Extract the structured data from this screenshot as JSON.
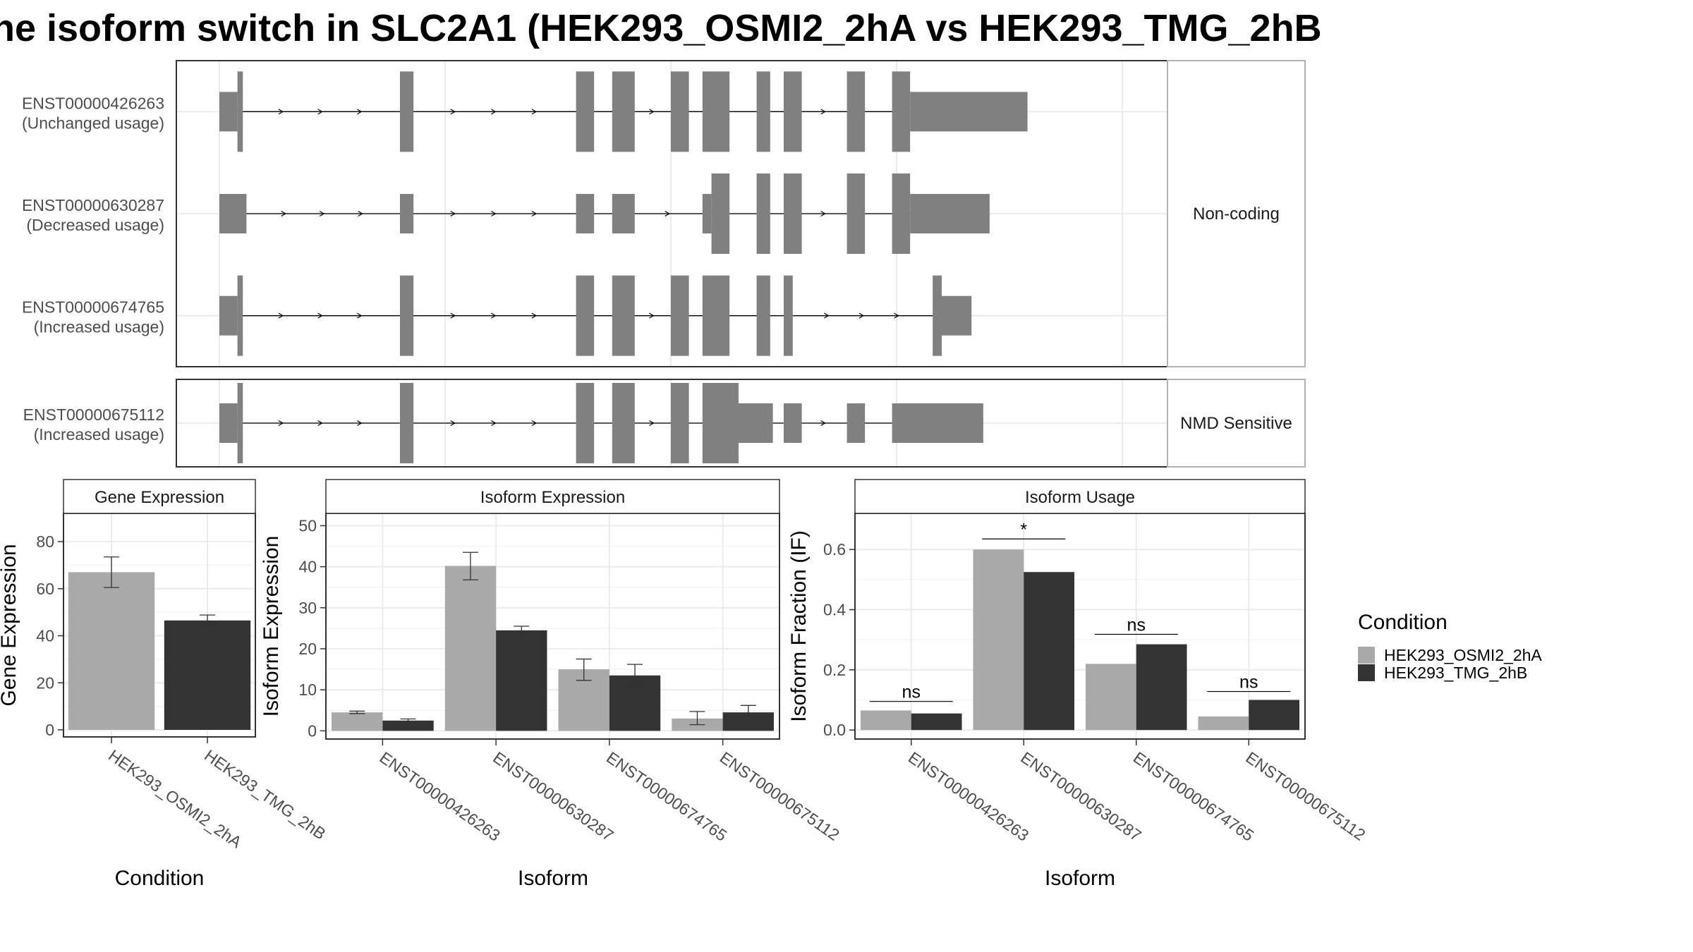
{
  "title": "he isoform switch in SLC2A1 (HEK293_OSMI2_2hA vs HEK293_TMG_2hB",
  "colors": {
    "cond_a": "#a9a9a9",
    "cond_b": "#333333",
    "exon": "#808080",
    "strip_bg": "#ffffff",
    "grid": "#ebebeb"
  },
  "structure": {
    "groups": [
      {
        "label": "Non-coding",
        "isoforms": [
          {
            "id": "ENST00000426263",
            "usage": "(Unchanged usage)",
            "exons": [
              [
                0,
                2,
                "n"
              ],
              [
                2,
                2.6,
                "t"
              ],
              [
                20,
                21.5,
                "t"
              ],
              [
                39.5,
                41.5,
                "t"
              ],
              [
                43.5,
                46,
                "t"
              ],
              [
                50,
                52,
                "t"
              ],
              [
                53.5,
                56.5,
                "t"
              ],
              [
                59.5,
                61,
                "t"
              ],
              [
                62.5,
                64.5,
                "t"
              ],
              [
                69.5,
                71.5,
                "t"
              ],
              [
                74.5,
                76.5,
                "t"
              ],
              [
                76.5,
                89.5,
                "n"
              ]
            ]
          },
          {
            "id": "ENST00000630287",
            "usage": "(Decreased usage)",
            "exons": [
              [
                0,
                3,
                "n"
              ],
              [
                20,
                21.5,
                "n"
              ],
              [
                39.5,
                41.5,
                "n"
              ],
              [
                43.5,
                46,
                "n"
              ],
              [
                53.5,
                54.5,
                "n"
              ],
              [
                54.5,
                56.5,
                "t"
              ],
              [
                59.5,
                61,
                "t"
              ],
              [
                62.5,
                64.5,
                "t"
              ],
              [
                69.5,
                71.5,
                "t"
              ],
              [
                74.5,
                76.5,
                "t"
              ],
              [
                76.5,
                85.3,
                "n"
              ]
            ]
          },
          {
            "id": "ENST00000674765",
            "usage": "(Increased usage)",
            "exons": [
              [
                0,
                2,
                "n"
              ],
              [
                2,
                2.6,
                "t"
              ],
              [
                20,
                21.5,
                "t"
              ],
              [
                39.5,
                41.5,
                "t"
              ],
              [
                43.5,
                46,
                "t"
              ],
              [
                50,
                52,
                "t"
              ],
              [
                53.5,
                56.5,
                "t"
              ],
              [
                59.5,
                61,
                "t"
              ],
              [
                62.5,
                63.5,
                "t"
              ],
              [
                79,
                80,
                "t"
              ],
              [
                80,
                83.3,
                "n"
              ]
            ]
          }
        ]
      },
      {
        "label": "NMD Sensitive",
        "isoforms": [
          {
            "id": "ENST00000675112",
            "usage": "(Increased usage)",
            "exons": [
              [
                0,
                2,
                "n"
              ],
              [
                2,
                2.6,
                "t"
              ],
              [
                20,
                21.5,
                "t"
              ],
              [
                39.5,
                41.5,
                "t"
              ],
              [
                43.5,
                46,
                "t"
              ],
              [
                50,
                52,
                "t"
              ],
              [
                53.5,
                57.5,
                "t"
              ],
              [
                57.5,
                61.3,
                "n"
              ],
              [
                62.5,
                64.5,
                "n"
              ],
              [
                69.5,
                71.5,
                "n"
              ],
              [
                74.5,
                84.6,
                "n"
              ]
            ]
          }
        ]
      }
    ]
  },
  "panels": {
    "gene": {
      "strip": "Gene Expression",
      "ylabel": "Gene Expression",
      "xlabel": "Condition"
    },
    "iso_expr": {
      "strip": "Isoform Expression",
      "ylabel": "Isoform Expression",
      "xlabel": "Isoform"
    },
    "iso_usage": {
      "strip": "Isoform Usage",
      "ylabel": "Isoform Fraction (IF)",
      "xlabel": "Isoform"
    }
  },
  "legend": {
    "title": "Condition",
    "items": [
      "HEK293_OSMI2_2hA",
      "HEK293_TMG_2hB"
    ]
  },
  "chart_data": [
    {
      "type": "bar",
      "title": "Gene Expression",
      "xlabel": "Condition",
      "ylabel": "Gene Expression",
      "categories": [
        "HEK293_OSMI2_2hA",
        "HEK293_TMG_2hB"
      ],
      "values": [
        67,
        46.5
      ],
      "errors": [
        [
          60.5,
          73.5
        ],
        [
          44.5,
          48.8
        ]
      ],
      "ylim": [
        -3,
        92
      ],
      "yticks": [
        0,
        20,
        40,
        60,
        80
      ]
    },
    {
      "type": "bar",
      "title": "Isoform Expression",
      "xlabel": "Isoform",
      "ylabel": "Isoform Expression",
      "categories": [
        "ENST00000426263",
        "ENST00000630287",
        "ENST00000674765",
        "ENST00000675112"
      ],
      "series": [
        {
          "name": "HEK293_OSMI2_2hA",
          "values": [
            4.5,
            40.2,
            15,
            3
          ],
          "errors": [
            [
              4.2,
              4.8
            ],
            [
              36.8,
              43.5
            ],
            [
              12.3,
              17.5
            ],
            [
              1.5,
              4.7
            ]
          ]
        },
        {
          "name": "HEK293_TMG_2hB",
          "values": [
            2.5,
            24.5,
            13.5,
            4.5
          ],
          "errors": [
            [
              2.1,
              2.9
            ],
            [
              23.5,
              25.5
            ],
            [
              10.5,
              16.2
            ],
            [
              3,
              6.2
            ]
          ]
        }
      ],
      "ylim": [
        -2,
        53
      ],
      "yticks": [
        0,
        10,
        20,
        30,
        40,
        50
      ]
    },
    {
      "type": "bar",
      "title": "Isoform Usage",
      "xlabel": "Isoform",
      "ylabel": "Isoform Fraction (IF)",
      "categories": [
        "ENST00000426263",
        "ENST00000630287",
        "ENST00000674765",
        "ENST00000675112"
      ],
      "series": [
        {
          "name": "HEK293_OSMI2_2hA",
          "values": [
            0.065,
            0.6,
            0.22,
            0.045
          ]
        },
        {
          "name": "HEK293_TMG_2hB",
          "values": [
            0.055,
            0.525,
            0.285,
            0.1
          ]
        }
      ],
      "significance": [
        "ns",
        "*",
        "ns",
        "ns"
      ],
      "sig_y": [
        0.095,
        0.635,
        0.318,
        0.128
      ],
      "ylim": [
        -0.03,
        0.72
      ],
      "yticks": [
        0.0,
        0.2,
        0.4,
        0.6
      ],
      "ytick_labels": [
        "0.0",
        "0.2",
        "0.4",
        "0.6"
      ]
    }
  ]
}
